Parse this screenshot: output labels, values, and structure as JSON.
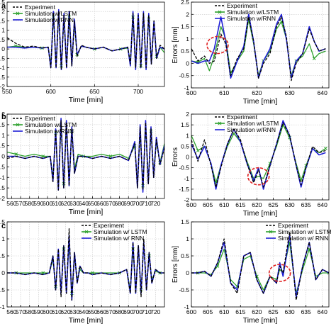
{
  "figure": {
    "panel_labels": [
      "a",
      "b",
      "c"
    ]
  },
  "colors": {
    "experiment": "#000000",
    "lstm": "#2ca02c",
    "rnn": "#1f1fd6",
    "circle": "#e02020",
    "grid": "#c8c8c8"
  },
  "chart_data": [
    {
      "type": "line",
      "xlabel": "Time [min]",
      "ylabel": "",
      "xlim": [
        550,
        730
      ],
      "ylim": [
        -2,
        2.5
      ],
      "xticks": [
        550,
        600,
        650,
        700
      ],
      "yticks": [
        -2,
        -1.5,
        -1,
        -0.5,
        0,
        0.5,
        1,
        1.5,
        2,
        2.5
      ],
      "grid": true,
      "legend": "top-left",
      "x": [
        550,
        560,
        570,
        580,
        590,
        597,
        600,
        603,
        606,
        609,
        612,
        615,
        618,
        621,
        624,
        627,
        630,
        635,
        640,
        650,
        660,
        670,
        680,
        688,
        691,
        694,
        697,
        700,
        703,
        706,
        709,
        712,
        715,
        718,
        721,
        725,
        730
      ],
      "series": [
        {
          "name": "Experiment",
          "style": "dash",
          "values": [
            0.6,
            0.3,
            0.1,
            0.15,
            0.05,
            0.1,
            -1.0,
            1.9,
            -1.0,
            2.0,
            -1.1,
            1.8,
            -1.0,
            1.9,
            -0.9,
            1.5,
            -0.4,
            0.2,
            0.1,
            0.0,
            0.1,
            -0.1,
            0.0,
            0.1,
            -0.8,
            1.9,
            -1.0,
            1.8,
            -1.0,
            1.9,
            -1.0,
            1.8,
            -0.8,
            1.5,
            -0.5,
            0.2,
            0.0
          ]
        },
        {
          "name": "Simulation w/LSTM",
          "style": "cross",
          "values": [
            0.1,
            0.15,
            0.1,
            0.1,
            0.05,
            0.1,
            -0.8,
            1.7,
            -0.8,
            1.8,
            -0.9,
            1.7,
            -0.9,
            1.7,
            -0.8,
            1.4,
            -0.3,
            0.15,
            0.1,
            0.0,
            0.1,
            -0.1,
            0.0,
            0.05,
            -0.7,
            1.7,
            -0.9,
            1.7,
            -0.9,
            1.7,
            -0.9,
            1.6,
            -0.7,
            1.4,
            -0.4,
            0.1,
            -0.2
          ]
        },
        {
          "name": "Simulation w/RNN",
          "style": "solid",
          "values": [
            0.1,
            0.1,
            0.05,
            0.1,
            0.05,
            0.1,
            -1.0,
            2.0,
            -1.0,
            2.1,
            -1.1,
            1.9,
            -1.0,
            2.0,
            -0.9,
            1.6,
            -0.3,
            0.15,
            0.1,
            0.0,
            0.1,
            -0.1,
            0.0,
            0.1,
            -0.9,
            2.0,
            -1.1,
            1.9,
            -1.0,
            2.0,
            -1.1,
            1.9,
            -0.8,
            1.5,
            -0.5,
            0.1,
            0.0
          ]
        }
      ]
    },
    {
      "type": "line",
      "xlabel": "Time [min]",
      "ylabel": "Errors [mm]",
      "xlim": [
        600,
        642
      ],
      "ylim": [
        -1,
        2.5
      ],
      "xticks": [
        600,
        610,
        620,
        630,
        640
      ],
      "yticks": [
        -1,
        -0.5,
        0,
        0.5,
        1,
        1.5,
        2,
        2.5
      ],
      "grid": true,
      "legend": "top",
      "x": [
        600,
        602,
        604,
        605.5,
        607,
        609,
        610.5,
        612,
        614,
        616,
        617.5,
        619,
        620.5,
        622,
        624,
        626,
        627.5,
        629,
        630.5,
        632,
        634,
        636,
        637.5,
        639,
        641
      ],
      "series": [
        {
          "name": "Experiment",
          "style": "dash",
          "values": [
            0.6,
            0.1,
            0.3,
            0.0,
            0.1,
            1.2,
            0.8,
            -0.5,
            0.2,
            0.6,
            1.9,
            0.9,
            -0.6,
            0.0,
            0.4,
            1.5,
            1.9,
            1.1,
            -0.7,
            0.0,
            0.4,
            1.4,
            0.9,
            0.5,
            0.6
          ]
        },
        {
          "name": "Simulation w/LSTM",
          "style": "cross",
          "values": [
            0.1,
            0.05,
            0.2,
            -0.3,
            0.3,
            1.5,
            1.0,
            -0.4,
            0.1,
            0.5,
            1.8,
            0.8,
            -0.5,
            0.1,
            0.5,
            1.4,
            1.7,
            1.0,
            -0.5,
            0.1,
            0.3,
            0.8,
            0.2,
            0.4,
            0.5
          ]
        },
        {
          "name": "Simulation w/RNN",
          "style": "solid",
          "values": [
            0.1,
            0.0,
            0.1,
            0.1,
            0.6,
            1.9,
            0.9,
            -0.6,
            0.1,
            0.7,
            2.0,
            0.9,
            -0.6,
            0.1,
            0.6,
            1.6,
            2.0,
            1.0,
            -0.6,
            0.1,
            0.4,
            1.5,
            0.9,
            0.5,
            0.6
          ]
        }
      ],
      "annotations": [
        {
          "shape": "dashed-ellipse",
          "x": 608,
          "y": 0.75
        }
      ]
    },
    {
      "type": "line",
      "xlabel": "Time [min]",
      "ylabel": "",
      "xlim": [
        555,
        730
      ],
      "ylim": [
        -2,
        2
      ],
      "xticks": [
        560,
        570,
        580,
        590,
        600,
        610,
        620,
        630,
        640,
        650,
        660,
        670,
        680,
        690,
        700,
        710,
        720
      ],
      "yticks": [
        -2,
        -1.5,
        -1,
        -0.5,
        0,
        0.5,
        1,
        1.5,
        2
      ],
      "grid": true,
      "legend": "top-left",
      "x": [
        555,
        565,
        575,
        585,
        595,
        603,
        606,
        609,
        612,
        615,
        618,
        621,
        624,
        627,
        630,
        634,
        640,
        650,
        660,
        670,
        680,
        690,
        697,
        700,
        703,
        706,
        709,
        712,
        715,
        718,
        721,
        725,
        730
      ],
      "series": [
        {
          "name": "Experiment",
          "style": "dash",
          "values": [
            -0.1,
            0.0,
            -0.1,
            0.0,
            -0.1,
            0.0,
            -1.2,
            1.2,
            -1.6,
            1.7,
            -1.5,
            1.6,
            -1.4,
            1.3,
            -0.8,
            0.0,
            0.0,
            -0.1,
            0.0,
            -0.1,
            0.0,
            -0.2,
            0.6,
            -1.5,
            1.4,
            -1.6,
            1.6,
            -1.3,
            1.3,
            -1.0,
            0.8,
            -0.4,
            0.4
          ]
        },
        {
          "name": "Simulation w/LSTM",
          "style": "cross",
          "values": [
            0.2,
            0.1,
            0.0,
            0.1,
            0.0,
            0.0,
            -1.0,
            1.1,
            -1.4,
            1.5,
            -1.3,
            1.4,
            -1.2,
            1.2,
            -0.6,
            0.1,
            0.0,
            0.0,
            0.1,
            0.0,
            0.1,
            -0.1,
            0.5,
            -1.3,
            1.2,
            -1.4,
            1.4,
            -1.1,
            1.2,
            -0.8,
            0.7,
            -0.3,
            0.6
          ]
        },
        {
          "name": "Simulation w/RNN",
          "style": "solid",
          "values": [
            0.0,
            0.0,
            -0.1,
            0.0,
            -0.1,
            0.0,
            -1.2,
            1.3,
            -1.6,
            1.8,
            -1.5,
            1.7,
            -1.4,
            1.4,
            -0.8,
            0.0,
            0.0,
            -0.1,
            0.0,
            -0.1,
            0.0,
            -0.2,
            0.7,
            -1.5,
            1.5,
            -1.7,
            1.7,
            -1.3,
            1.4,
            -1.0,
            0.9,
            -0.4,
            0.5
          ]
        }
      ]
    },
    {
      "type": "line",
      "xlabel": "Time [min]",
      "ylabel": "Errors",
      "xlim": [
        600,
        642
      ],
      "ylim": [
        -2,
        2
      ],
      "xticks": [
        600,
        605,
        610,
        615,
        620,
        625,
        630,
        635,
        640
      ],
      "yticks": [
        -2,
        -1.5,
        -1,
        -0.5,
        0,
        0.5,
        1,
        1.5,
        2
      ],
      "grid": true,
      "legend": "top",
      "x": [
        600,
        602,
        604,
        606,
        607.5,
        609,
        611,
        613,
        615,
        617,
        619,
        620.5,
        622,
        624,
        626,
        628,
        630,
        632,
        633.5,
        635,
        637,
        639,
        641
      ],
      "series": [
        {
          "name": "Experiment",
          "style": "dash",
          "values": [
            0.8,
            -0.2,
            0.8,
            -0.4,
            -1.4,
            -0.5,
            0.6,
            1.3,
            0.8,
            -0.3,
            -1.2,
            -0.6,
            -1.4,
            -0.4,
            0.6,
            1.6,
            1.0,
            -0.4,
            -1.3,
            -0.5,
            0.5,
            0.2,
            0.3
          ]
        },
        {
          "name": "Simulation w/LSTM",
          "style": "cross",
          "values": [
            1.0,
            0.3,
            0.5,
            -0.3,
            -1.2,
            -0.4,
            0.5,
            1.1,
            0.7,
            -0.2,
            -1.0,
            -0.9,
            -1.0,
            -0.3,
            0.5,
            1.5,
            0.9,
            -0.3,
            -1.1,
            -0.4,
            0.4,
            0.2,
            0.4
          ]
        },
        {
          "name": "Simulation w/RNN",
          "style": "solid",
          "values": [
            0.6,
            -0.1,
            0.5,
            -0.3,
            -1.5,
            -0.4,
            0.6,
            1.3,
            0.7,
            -0.3,
            -1.1,
            -0.5,
            -1.5,
            -0.4,
            0.6,
            1.7,
            1.0,
            -0.4,
            -1.4,
            -0.5,
            0.4,
            0.1,
            0.2
          ]
        }
      ],
      "annotations": [
        {
          "shape": "dashed-ellipse",
          "x": 620.5,
          "y": -0.9
        }
      ]
    },
    {
      "type": "line",
      "xlabel": "Time [min]",
      "ylabel": "",
      "xlim": [
        555,
        730
      ],
      "ylim": [
        -1,
        1.5
      ],
      "xticks": [
        560,
        570,
        580,
        590,
        600,
        610,
        620,
        630,
        640,
        650,
        660,
        670,
        680,
        690,
        700,
        710,
        720
      ],
      "yticks": [
        -1,
        -0.5,
        0,
        0.5,
        1,
        1.5
      ],
      "grid": true,
      "legend": "top-right",
      "x": [
        555,
        565,
        575,
        585,
        595,
        602,
        606,
        609,
        612,
        615,
        618,
        621,
        624,
        627,
        630,
        633,
        636,
        640,
        645,
        650,
        660,
        670,
        680,
        688,
        692,
        695,
        698,
        701,
        704,
        707,
        710,
        713,
        716,
        720,
        725,
        730
      ],
      "series": [
        {
          "name": "Experiment",
          "style": "dash",
          "values": [
            0.0,
            0.0,
            -0.05,
            0.0,
            -0.05,
            0.0,
            0.5,
            -0.5,
            0.7,
            -0.7,
            0.8,
            -0.6,
            1.3,
            -0.8,
            0.6,
            -0.3,
            0.2,
            0.0,
            0.0,
            -0.05,
            0.0,
            -0.05,
            0.0,
            0.1,
            -0.6,
            0.9,
            -0.6,
            0.8,
            -0.7,
            1.0,
            -0.5,
            0.6,
            -0.3,
            0.1,
            0.0,
            0.0
          ]
        },
        {
          "name": "Simulation w/ LSTM",
          "style": "cross",
          "values": [
            0.0,
            0.0,
            0.0,
            0.0,
            0.0,
            0.0,
            0.4,
            -0.4,
            0.6,
            -0.5,
            0.7,
            -0.5,
            0.9,
            -0.6,
            0.5,
            -0.2,
            0.1,
            0.0,
            0.0,
            0.0,
            0.0,
            0.0,
            0.0,
            0.1,
            -0.5,
            0.7,
            -0.5,
            0.7,
            -0.5,
            0.8,
            -0.4,
            0.5,
            -0.2,
            0.05,
            0.0,
            0.0
          ]
        },
        {
          "name": "Simulation w/ RNN",
          "style": "solid",
          "values": [
            0.0,
            0.0,
            -0.05,
            0.0,
            -0.05,
            0.0,
            0.5,
            -0.5,
            0.7,
            -0.6,
            0.8,
            -0.6,
            1.1,
            -0.8,
            0.6,
            -0.3,
            0.2,
            0.0,
            0.0,
            -0.05,
            0.0,
            -0.05,
            0.0,
            0.1,
            -0.6,
            0.9,
            -0.6,
            0.8,
            -0.6,
            0.9,
            -0.5,
            0.6,
            -0.3,
            0.1,
            0.0,
            0.0
          ]
        }
      ]
    },
    {
      "type": "line",
      "xlabel": "Time [min]",
      "ylabel": "Errors [mm]",
      "xlim": [
        600,
        642
      ],
      "ylim": [
        -1,
        1.5
      ],
      "xticks": [
        600,
        605,
        610,
        615,
        620,
        625,
        630,
        635,
        640
      ],
      "yticks": [
        -1,
        -0.5,
        0,
        0.5,
        1,
        1.5
      ],
      "grid": true,
      "legend": "top-right",
      "x": [
        600,
        602,
        604,
        606,
        608,
        610,
        612,
        614,
        616,
        618,
        620,
        622,
        624,
        626,
        627,
        628,
        630,
        632,
        634,
        636,
        638,
        640,
        642
      ],
      "series": [
        {
          "name": "Experiment",
          "style": "dash",
          "values": [
            0.0,
            0.0,
            0.05,
            -0.1,
            0.3,
            1.0,
            -0.3,
            -0.6,
            0.5,
            0.6,
            -0.2,
            -0.6,
            -0.1,
            -0.3,
            0.2,
            0.0,
            1.2,
            -0.8,
            0.2,
            0.9,
            -0.2,
            0.1,
            0.0
          ]
        },
        {
          "name": "Simulation w/ LSTM",
          "style": "cross",
          "values": [
            0.0,
            0.0,
            0.0,
            -0.05,
            0.2,
            0.7,
            -0.2,
            -0.4,
            0.4,
            0.5,
            -0.1,
            -0.5,
            -0.1,
            -0.2,
            0.1,
            0.0,
            0.9,
            -0.6,
            0.1,
            0.7,
            -0.1,
            0.0,
            0.0
          ]
        },
        {
          "name": "Simulation w/ RNN",
          "style": "solid",
          "values": [
            0.0,
            0.0,
            0.05,
            -0.1,
            0.3,
            0.9,
            -0.3,
            -0.5,
            0.5,
            0.6,
            -0.2,
            -0.6,
            -0.1,
            -0.3,
            0.3,
            -0.1,
            1.1,
            -0.7,
            0.2,
            0.9,
            -0.2,
            0.1,
            0.0
          ]
        }
      ],
      "annotations": [
        {
          "shape": "dashed-ellipse",
          "x": 627,
          "y": 0.0
        }
      ]
    }
  ]
}
